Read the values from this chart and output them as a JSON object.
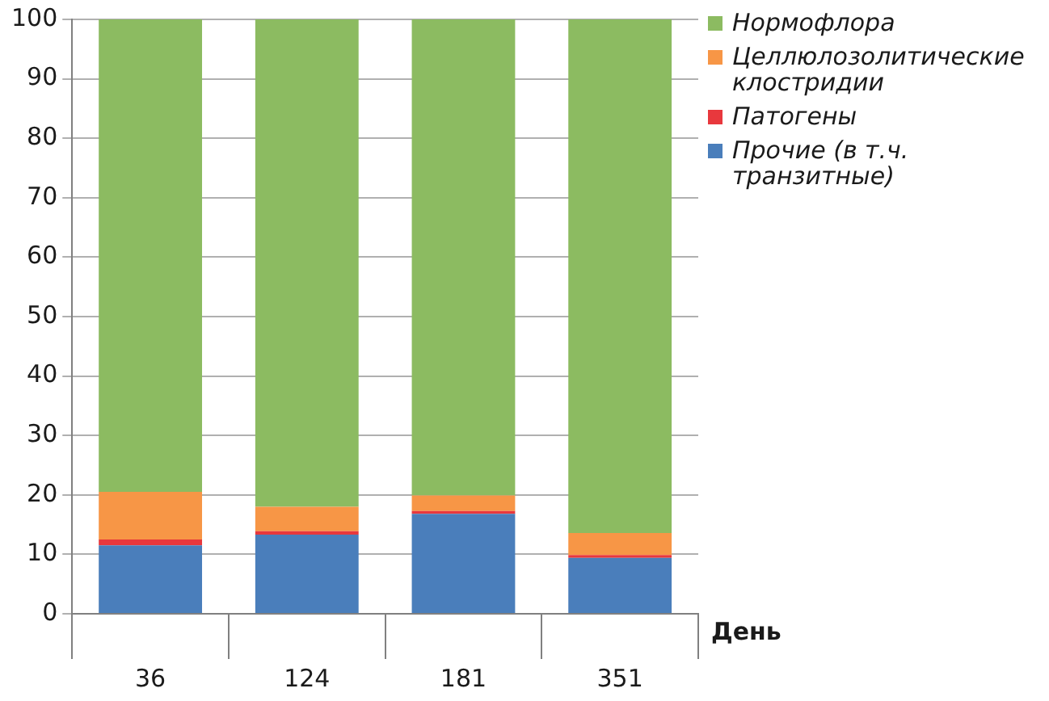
{
  "chart_data": {
    "type": "bar",
    "stacked": true,
    "xlabel": "День",
    "categories": [
      "36",
      "124",
      "181",
      "351"
    ],
    "series": [
      {
        "name": "Прочие (в т.ч. транзитные)",
        "color": "#4a7ebb",
        "values": [
          11.5,
          13.3,
          16.8,
          9.4
        ]
      },
      {
        "name": "Патогены",
        "color": "#e8383d",
        "values": [
          1,
          0.6,
          0.5,
          0.5
        ]
      },
      {
        "name": "Целлюлозолитические клостридии",
        "color": "#f79646",
        "values": [
          8,
          4.1,
          2.6,
          3.7
        ]
      },
      {
        "name": "Нормофлора",
        "color": "#8cbb61",
        "values": [
          79.5,
          82,
          80.1,
          86.4
        ]
      }
    ],
    "ylim": [
      0,
      100
    ],
    "yticks": [
      0,
      10,
      20,
      30,
      40,
      50,
      60,
      70,
      80,
      90,
      100
    ],
    "grid": "y",
    "legend": "top right"
  }
}
